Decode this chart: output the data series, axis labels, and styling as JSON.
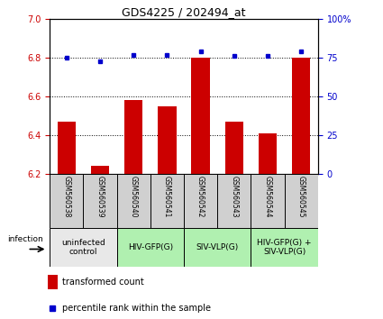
{
  "title": "GDS4225 / 202494_at",
  "samples": [
    "GSM560538",
    "GSM560539",
    "GSM560540",
    "GSM560541",
    "GSM560542",
    "GSM560543",
    "GSM560544",
    "GSM560545"
  ],
  "bar_values": [
    6.47,
    6.24,
    6.58,
    6.55,
    6.8,
    6.47,
    6.41,
    6.8
  ],
  "dot_values": [
    75,
    73,
    77,
    77,
    79,
    76,
    76,
    79
  ],
  "ylim_left": [
    6.2,
    7.0
  ],
  "ylim_right": [
    0,
    100
  ],
  "yticks_left": [
    6.2,
    6.4,
    6.6,
    6.8,
    7.0
  ],
  "yticks_right": [
    0,
    25,
    50,
    75,
    100
  ],
  "bar_color": "#cc0000",
  "dot_color": "#0000cc",
  "bar_bottom": 6.2,
  "group_labels": [
    "uninfected\ncontrol",
    "HIV-GFP(G)",
    "SIV-VLP(G)",
    "HIV-GFP(G) +\nSIV-VLP(G)"
  ],
  "group_ranges": [
    [
      0,
      2
    ],
    [
      2,
      4
    ],
    [
      4,
      6
    ],
    [
      6,
      8
    ]
  ],
  "group_colors": [
    "#e8e8e8",
    "#b0f0b0",
    "#b0f0b0",
    "#b0f0b0"
  ],
  "sample_bg_color": "#d0d0d0",
  "infection_label": "infection",
  "legend_bar_label": "transformed count",
  "legend_dot_label": "percentile rank within the sample",
  "left_tick_color": "#cc0000",
  "right_tick_color": "#0000cc",
  "grid_color": "#000000",
  "title_fontsize": 9,
  "tick_fontsize": 7,
  "sample_fontsize": 5.5,
  "group_fontsize": 6.5,
  "legend_fontsize": 7
}
